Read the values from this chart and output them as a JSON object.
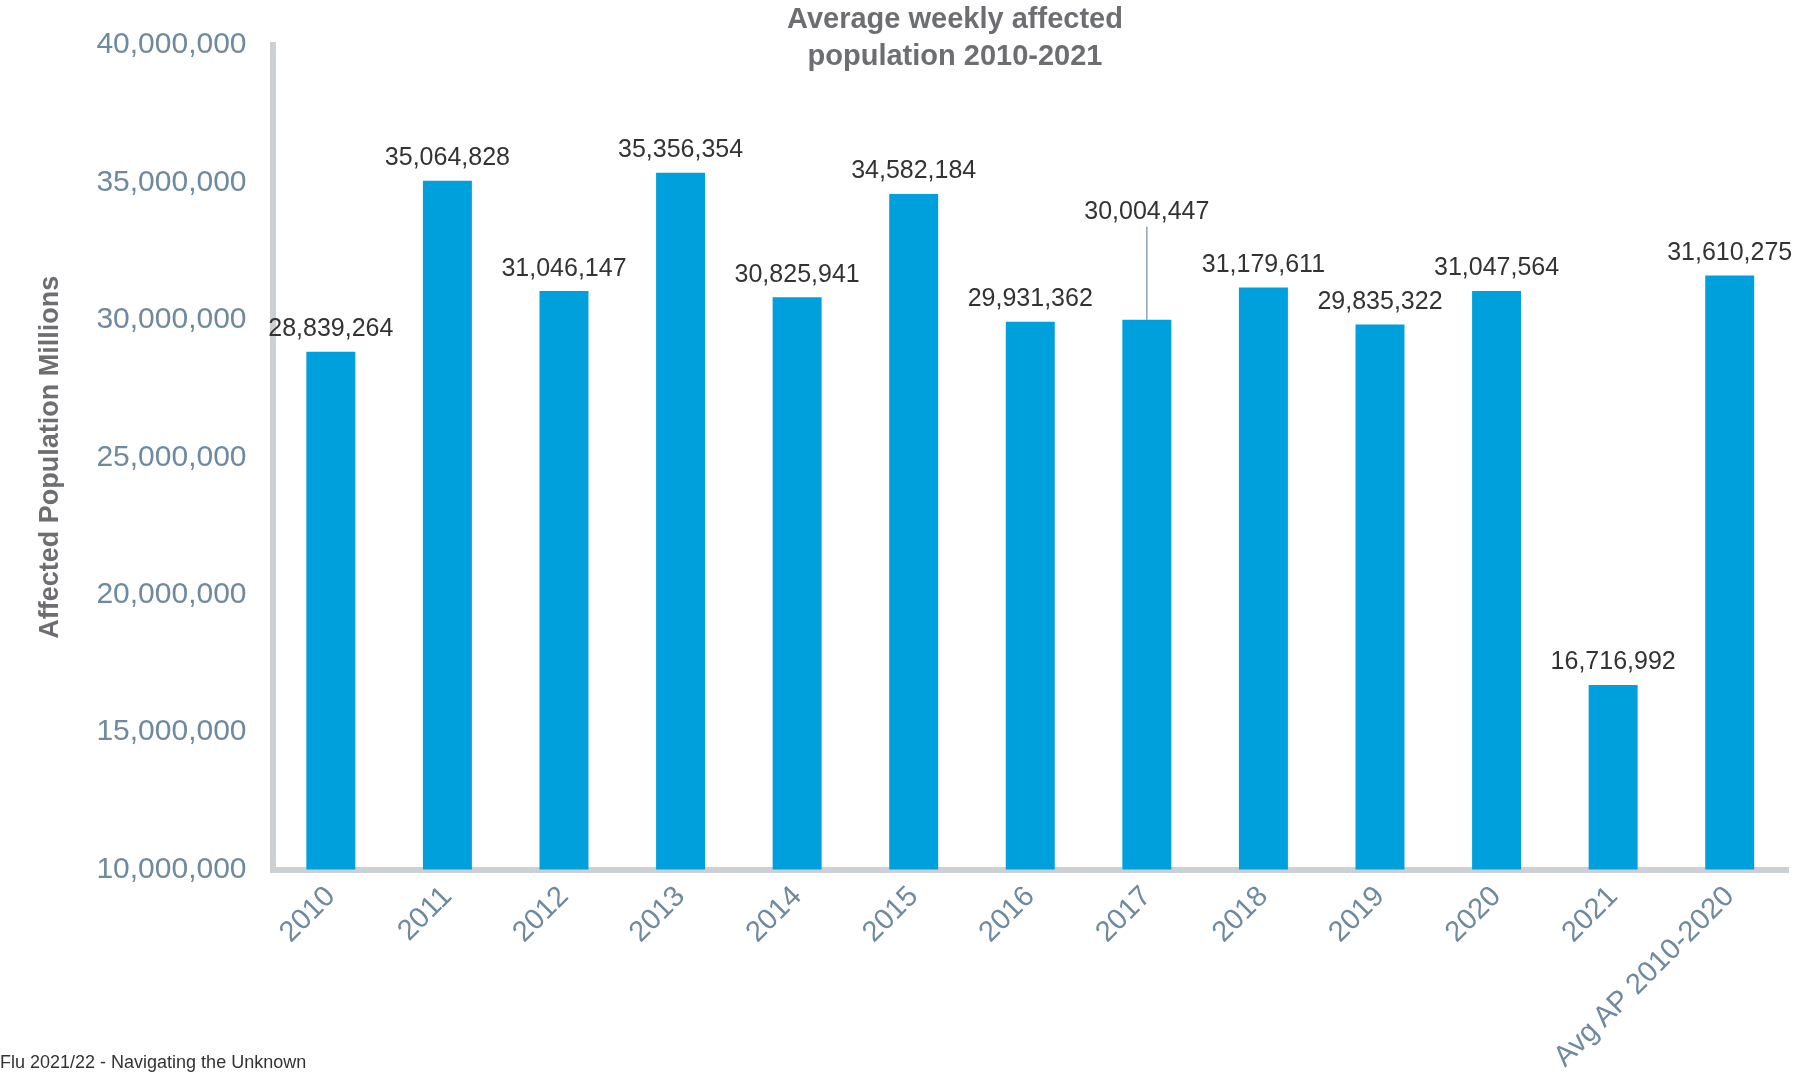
{
  "chart_data": {
    "type": "bar",
    "title": "Average weekly affected population 2010-2021",
    "ylabel": "Affected Population Millions",
    "categories": [
      "2010",
      "2011",
      "2012",
      "2013",
      "2014",
      "2015",
      "2016",
      "2017",
      "2018",
      "2019",
      "2020",
      "2021",
      "Avg AP 2010-2020"
    ],
    "values": [
      28839264,
      35064828,
      31046147,
      35356354,
      30825941,
      34582184,
      29931362,
      30004447,
      31179611,
      29835322,
      31047564,
      16716992,
      31610275
    ],
    "value_labels": [
      "28,839,264",
      "35,064,828",
      "31,046,147",
      "35,356,354",
      "30,825,941",
      "34,582,184",
      "29,931,362",
      null,
      "31,179,611",
      "29,835,322",
      "31,047,564",
      "16,716,992",
      "31,610,275"
    ],
    "color": "#00a0dc",
    "ylim": [
      10000000,
      40000000
    ],
    "yticks": [
      {
        "value": 10000000,
        "label": "10,000,000"
      },
      {
        "value": 15000000,
        "label": "15,000,000"
      },
      {
        "value": 20000000,
        "label": "20,000,000"
      },
      {
        "value": 25000000,
        "label": "25,000,000"
      },
      {
        "value": 30000000,
        "label": "30,000,000"
      },
      {
        "value": 35000000,
        "label": "35,000,000"
      },
      {
        "value": 40000000,
        "label": "40,000,000"
      }
    ],
    "grid": false,
    "legend": false,
    "annotations": [
      {
        "text": "30,004,447",
        "x": "2017",
        "y": 30004447
      },
      "Flu 2021/22 - Navigating the Unknown"
    ]
  }
}
